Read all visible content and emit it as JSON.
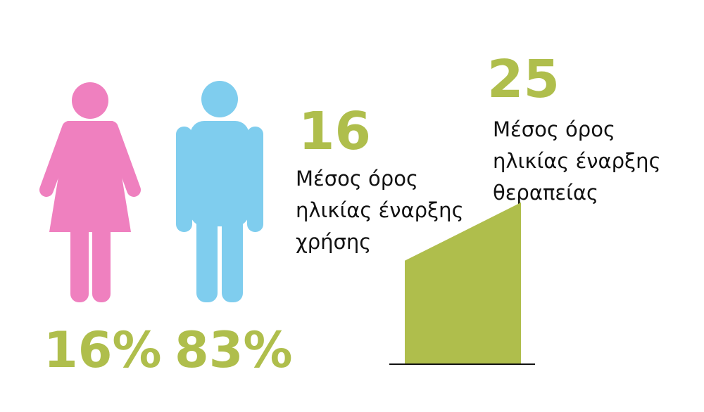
{
  "gender": {
    "women": {
      "label": "16%"
    },
    "men": {
      "label": "83%"
    }
  },
  "ages": {
    "start_use": {
      "value": 16,
      "lines": [
        "Μέσος όρος",
        "ηλικίας έναρξης",
        "χρήσης"
      ]
    },
    "start_treatment": {
      "value": 25,
      "lines": [
        "Μέσος όρος",
        "ηλικίας έναρξης",
        "θεραπείας"
      ]
    }
  }
}
